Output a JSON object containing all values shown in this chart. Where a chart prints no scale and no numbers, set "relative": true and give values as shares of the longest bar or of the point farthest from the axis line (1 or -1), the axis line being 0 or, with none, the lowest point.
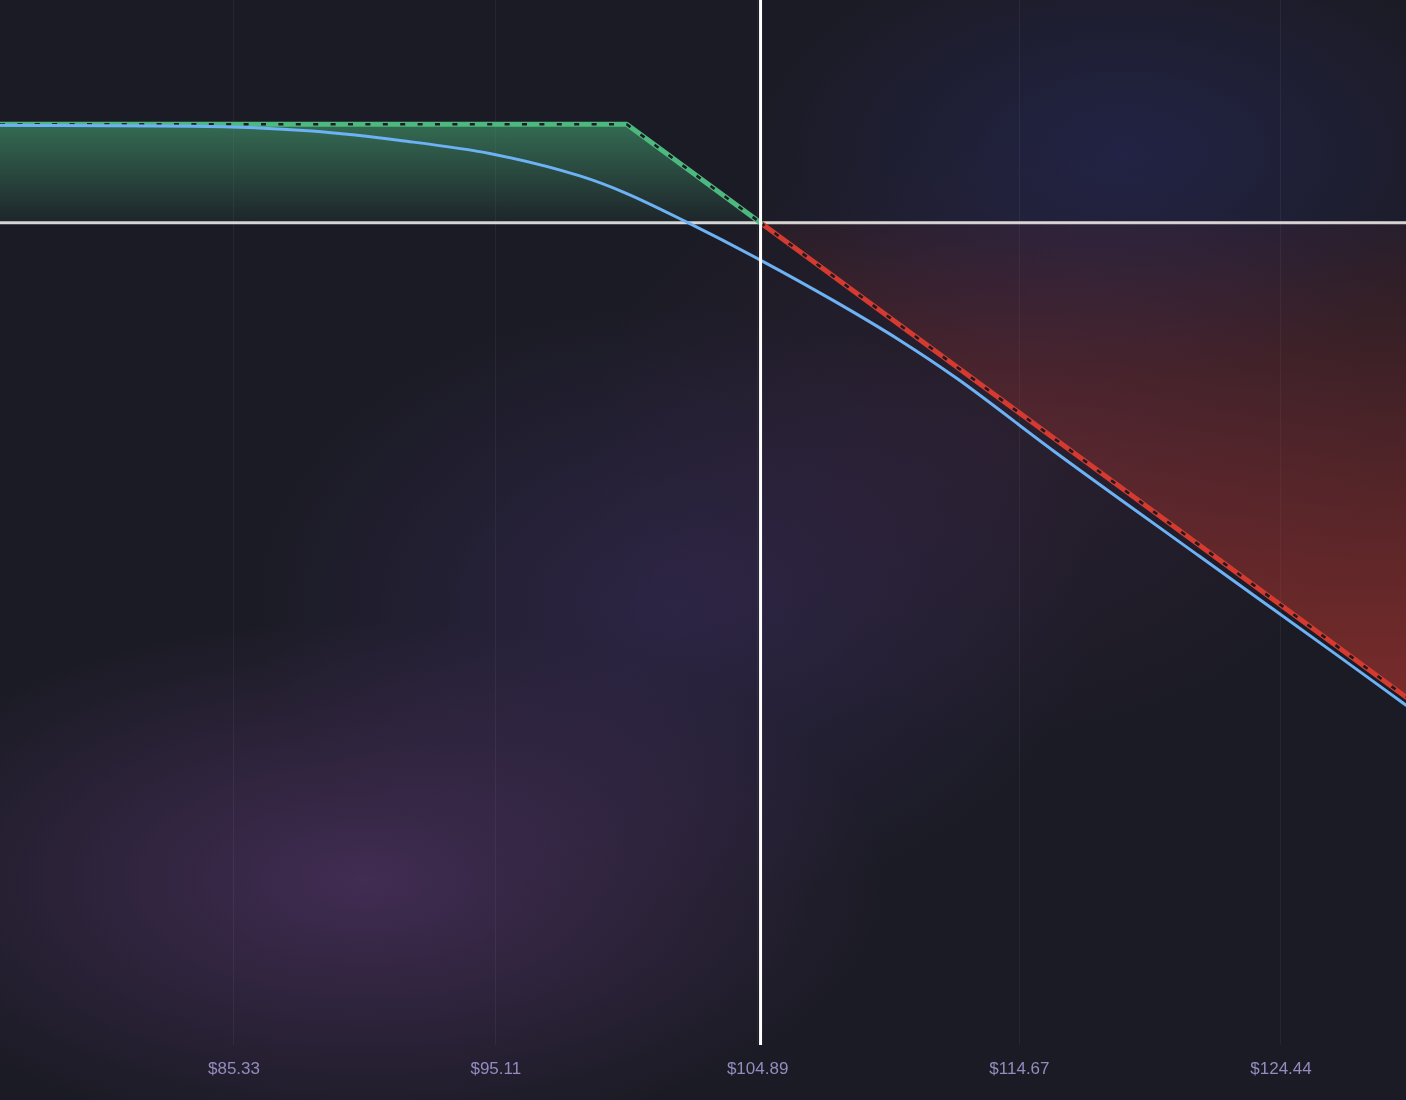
{
  "chart_data": {
    "type": "line",
    "relative": true,
    "xlim": [
      76.59,
      129.11
    ],
    "xticks": [
      {
        "value": 85.33,
        "label": "$85.33"
      },
      {
        "value": 95.11,
        "label": "$95.11"
      },
      {
        "value": 104.89,
        "label": "$104.89"
      },
      {
        "value": 114.67,
        "label": "$114.67"
      },
      {
        "value": 124.44,
        "label": "$124.44"
      }
    ],
    "tick_labels": "x",
    "series": [
      {
        "type": "area",
        "color": "#4cba7f",
        "line_style": "dashed",
        "x": [
          76.59,
          100.0,
          105.0
        ],
        "values": [
          0.204,
          0.204,
          0
        ]
      },
      {
        "type": "area",
        "color": "#d43a2f",
        "line_style": "dashed",
        "x": [
          105.0,
          129.11
        ],
        "values": [
          0,
          -0.983
        ]
      },
      {
        "color": "#6cb2f4",
        "line_style": "solid",
        "x": [
          76.59,
          84.92,
          88.24,
          91.61,
          94.93,
          98.25,
          99.94,
          102.36,
          104.98,
          107.71,
          110.21,
          112.34,
          115.92,
          121.41,
          126.38,
          129.11
        ],
        "values": [
          0.202,
          0.199,
          0.19,
          0.17,
          0.143,
          0.097,
          0.062,
          -0.002,
          -0.077,
          -0.161,
          -0.244,
          -0.323,
          -0.472,
          -0.692,
          -0.89,
          -1.0
        ]
      }
    ],
    "ref_lines": [
      {
        "axis": "y",
        "value": 0,
        "color": "#d8d8d8"
      },
      {
        "axis": "x",
        "value": 105.0,
        "color": "#ffffff"
      }
    ],
    "grid": "x",
    "marker": "none"
  }
}
